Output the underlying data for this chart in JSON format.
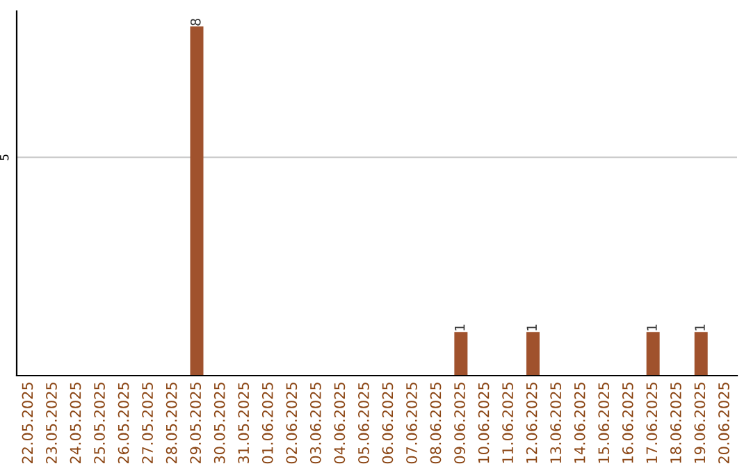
{
  "chart_data": {
    "type": "bar",
    "categories": [
      "22.05.2025",
      "23.05.2025",
      "24.05.2025",
      "25.05.2025",
      "26.05.2025",
      "27.05.2025",
      "28.05.2025",
      "29.05.2025",
      "30.05.2025",
      "31.05.2025",
      "01.06.2025",
      "02.06.2025",
      "03.06.2025",
      "04.06.2025",
      "05.06.2025",
      "06.06.2025",
      "07.06.2025",
      "08.06.2025",
      "09.06.2025",
      "10.06.2025",
      "11.06.2025",
      "12.06.2025",
      "13.06.2025",
      "14.06.2025",
      "15.06.2025",
      "16.06.2025",
      "17.06.2025",
      "18.06.2025",
      "19.06.2025",
      "20.06.2025"
    ],
    "values": [
      0,
      0,
      0,
      0,
      0,
      0,
      0,
      8,
      0,
      0,
      0,
      0,
      0,
      0,
      0,
      0,
      0,
      0,
      1,
      0,
      0,
      1,
      0,
      0,
      0,
      0,
      1,
      0,
      1,
      0
    ],
    "value_labels": [
      null,
      null,
      null,
      null,
      null,
      null,
      null,
      "8",
      null,
      null,
      null,
      null,
      null,
      null,
      null,
      null,
      null,
      null,
      "1",
      null,
      null,
      "1",
      null,
      null,
      null,
      null,
      "1",
      null,
      "1",
      null
    ],
    "color": "#a0522d",
    "ylim": [
      0,
      8.35
    ],
    "yticks": [
      5
    ],
    "grid": "y"
  }
}
